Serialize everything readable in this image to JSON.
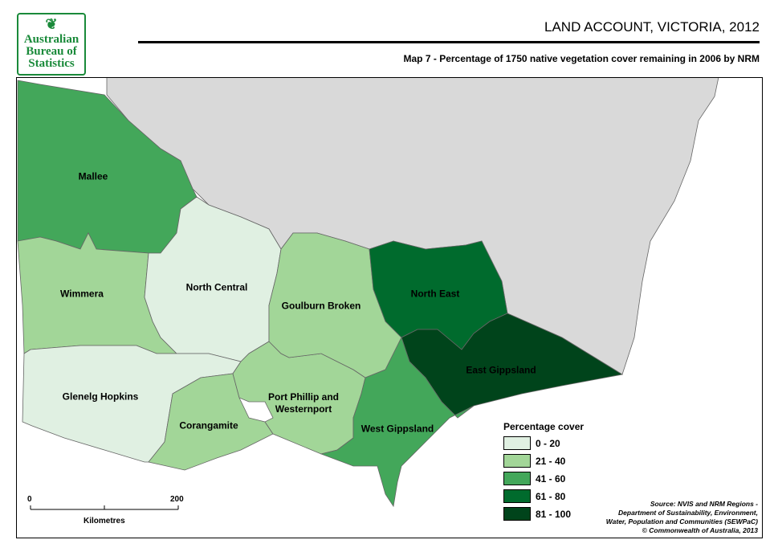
{
  "logo": {
    "text_lines": [
      "Australian",
      "Bureau of",
      "Statistics"
    ]
  },
  "header": {
    "title": "LAND ACCOUNT, VICTORIA, 2012",
    "subtitle": "Map 7 - Percentage of 1750 native vegetation cover remaining in 2006 by NRM"
  },
  "regions": [
    {
      "name": "Mallee",
      "class": "41 - 60"
    },
    {
      "name": "Wimmera",
      "class": "21 - 40"
    },
    {
      "name": "North Central",
      "class": "0 - 20"
    },
    {
      "name": "Glenelg Hopkins",
      "class": "0 - 20"
    },
    {
      "name": "Corangamite",
      "class": "21 - 40"
    },
    {
      "name": "Port Phillip and Westernport",
      "class": "21 - 40"
    },
    {
      "name": "Goulburn Broken",
      "class": "21 - 40"
    },
    {
      "name": "North East",
      "class": "61 - 80"
    },
    {
      "name": "East Gippsland",
      "class": "81 - 100"
    },
    {
      "name": "West Gippsland",
      "class": "41 - 60"
    }
  ],
  "legend": {
    "title": "Percentage cover",
    "items": [
      {
        "label": "0 - 20",
        "color": "#e0f0e2"
      },
      {
        "label": "21 - 40",
        "color": "#a2d698"
      },
      {
        "label": "41 - 60",
        "color": "#43a75a"
      },
      {
        "label": "61 - 80",
        "color": "#006b2d"
      },
      {
        "label": "81 - 100",
        "color": "#00441b"
      }
    ]
  },
  "scale": {
    "start": "0",
    "end": "200",
    "unit": "Kilometres"
  },
  "source": [
    "Source: NVIS and NRM Regions -",
    "Department of Sustainability, Environment,",
    "Water, Population and Communities (SEWPaC)",
    "© Commonwealth of Australia, 2013"
  ]
}
